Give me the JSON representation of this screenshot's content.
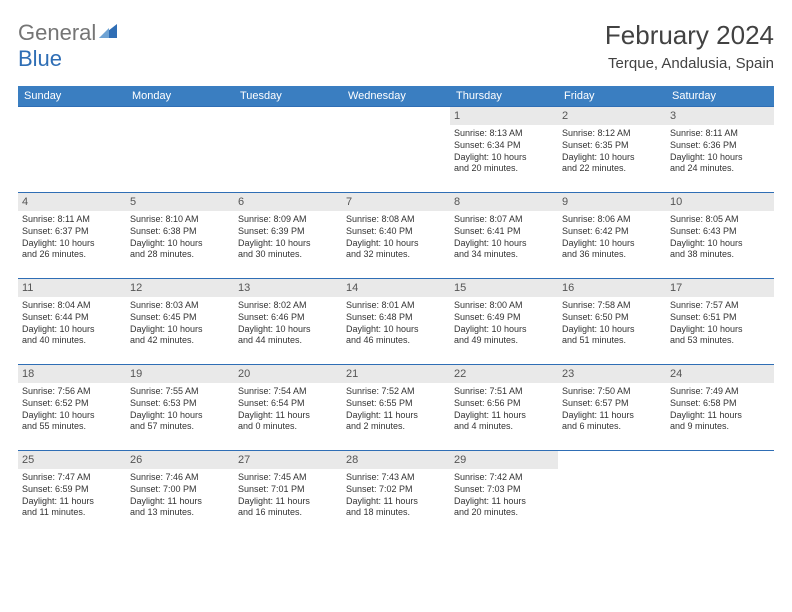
{
  "logo": {
    "text1": "General",
    "text2": "Blue"
  },
  "title": "February 2024",
  "subtitle": "Terque, Andalusia, Spain",
  "colors": {
    "header_bg": "#3a7ec1",
    "header_text": "#ffffff",
    "rule": "#2f6eb5",
    "daynum_bg": "#e9e9e9"
  },
  "day_headers": [
    "Sunday",
    "Monday",
    "Tuesday",
    "Wednesday",
    "Thursday",
    "Friday",
    "Saturday"
  ],
  "weeks": [
    [
      null,
      null,
      null,
      null,
      {
        "n": "1",
        "sr": "Sunrise: 8:13 AM",
        "ss": "Sunset: 6:34 PM",
        "dl1": "Daylight: 10 hours",
        "dl2": "and 20 minutes."
      },
      {
        "n": "2",
        "sr": "Sunrise: 8:12 AM",
        "ss": "Sunset: 6:35 PM",
        "dl1": "Daylight: 10 hours",
        "dl2": "and 22 minutes."
      },
      {
        "n": "3",
        "sr": "Sunrise: 8:11 AM",
        "ss": "Sunset: 6:36 PM",
        "dl1": "Daylight: 10 hours",
        "dl2": "and 24 minutes."
      }
    ],
    [
      {
        "n": "4",
        "sr": "Sunrise: 8:11 AM",
        "ss": "Sunset: 6:37 PM",
        "dl1": "Daylight: 10 hours",
        "dl2": "and 26 minutes."
      },
      {
        "n": "5",
        "sr": "Sunrise: 8:10 AM",
        "ss": "Sunset: 6:38 PM",
        "dl1": "Daylight: 10 hours",
        "dl2": "and 28 minutes."
      },
      {
        "n": "6",
        "sr": "Sunrise: 8:09 AM",
        "ss": "Sunset: 6:39 PM",
        "dl1": "Daylight: 10 hours",
        "dl2": "and 30 minutes."
      },
      {
        "n": "7",
        "sr": "Sunrise: 8:08 AM",
        "ss": "Sunset: 6:40 PM",
        "dl1": "Daylight: 10 hours",
        "dl2": "and 32 minutes."
      },
      {
        "n": "8",
        "sr": "Sunrise: 8:07 AM",
        "ss": "Sunset: 6:41 PM",
        "dl1": "Daylight: 10 hours",
        "dl2": "and 34 minutes."
      },
      {
        "n": "9",
        "sr": "Sunrise: 8:06 AM",
        "ss": "Sunset: 6:42 PM",
        "dl1": "Daylight: 10 hours",
        "dl2": "and 36 minutes."
      },
      {
        "n": "10",
        "sr": "Sunrise: 8:05 AM",
        "ss": "Sunset: 6:43 PM",
        "dl1": "Daylight: 10 hours",
        "dl2": "and 38 minutes."
      }
    ],
    [
      {
        "n": "11",
        "sr": "Sunrise: 8:04 AM",
        "ss": "Sunset: 6:44 PM",
        "dl1": "Daylight: 10 hours",
        "dl2": "and 40 minutes."
      },
      {
        "n": "12",
        "sr": "Sunrise: 8:03 AM",
        "ss": "Sunset: 6:45 PM",
        "dl1": "Daylight: 10 hours",
        "dl2": "and 42 minutes."
      },
      {
        "n": "13",
        "sr": "Sunrise: 8:02 AM",
        "ss": "Sunset: 6:46 PM",
        "dl1": "Daylight: 10 hours",
        "dl2": "and 44 minutes."
      },
      {
        "n": "14",
        "sr": "Sunrise: 8:01 AM",
        "ss": "Sunset: 6:48 PM",
        "dl1": "Daylight: 10 hours",
        "dl2": "and 46 minutes."
      },
      {
        "n": "15",
        "sr": "Sunrise: 8:00 AM",
        "ss": "Sunset: 6:49 PM",
        "dl1": "Daylight: 10 hours",
        "dl2": "and 49 minutes."
      },
      {
        "n": "16",
        "sr": "Sunrise: 7:58 AM",
        "ss": "Sunset: 6:50 PM",
        "dl1": "Daylight: 10 hours",
        "dl2": "and 51 minutes."
      },
      {
        "n": "17",
        "sr": "Sunrise: 7:57 AM",
        "ss": "Sunset: 6:51 PM",
        "dl1": "Daylight: 10 hours",
        "dl2": "and 53 minutes."
      }
    ],
    [
      {
        "n": "18",
        "sr": "Sunrise: 7:56 AM",
        "ss": "Sunset: 6:52 PM",
        "dl1": "Daylight: 10 hours",
        "dl2": "and 55 minutes."
      },
      {
        "n": "19",
        "sr": "Sunrise: 7:55 AM",
        "ss": "Sunset: 6:53 PM",
        "dl1": "Daylight: 10 hours",
        "dl2": "and 57 minutes."
      },
      {
        "n": "20",
        "sr": "Sunrise: 7:54 AM",
        "ss": "Sunset: 6:54 PM",
        "dl1": "Daylight: 11 hours",
        "dl2": "and 0 minutes."
      },
      {
        "n": "21",
        "sr": "Sunrise: 7:52 AM",
        "ss": "Sunset: 6:55 PM",
        "dl1": "Daylight: 11 hours",
        "dl2": "and 2 minutes."
      },
      {
        "n": "22",
        "sr": "Sunrise: 7:51 AM",
        "ss": "Sunset: 6:56 PM",
        "dl1": "Daylight: 11 hours",
        "dl2": "and 4 minutes."
      },
      {
        "n": "23",
        "sr": "Sunrise: 7:50 AM",
        "ss": "Sunset: 6:57 PM",
        "dl1": "Daylight: 11 hours",
        "dl2": "and 6 minutes."
      },
      {
        "n": "24",
        "sr": "Sunrise: 7:49 AM",
        "ss": "Sunset: 6:58 PM",
        "dl1": "Daylight: 11 hours",
        "dl2": "and 9 minutes."
      }
    ],
    [
      {
        "n": "25",
        "sr": "Sunrise: 7:47 AM",
        "ss": "Sunset: 6:59 PM",
        "dl1": "Daylight: 11 hours",
        "dl2": "and 11 minutes."
      },
      {
        "n": "26",
        "sr": "Sunrise: 7:46 AM",
        "ss": "Sunset: 7:00 PM",
        "dl1": "Daylight: 11 hours",
        "dl2": "and 13 minutes."
      },
      {
        "n": "27",
        "sr": "Sunrise: 7:45 AM",
        "ss": "Sunset: 7:01 PM",
        "dl1": "Daylight: 11 hours",
        "dl2": "and 16 minutes."
      },
      {
        "n": "28",
        "sr": "Sunrise: 7:43 AM",
        "ss": "Sunset: 7:02 PM",
        "dl1": "Daylight: 11 hours",
        "dl2": "and 18 minutes."
      },
      {
        "n": "29",
        "sr": "Sunrise: 7:42 AM",
        "ss": "Sunset: 7:03 PM",
        "dl1": "Daylight: 11 hours",
        "dl2": "and 20 minutes."
      },
      null,
      null
    ]
  ]
}
